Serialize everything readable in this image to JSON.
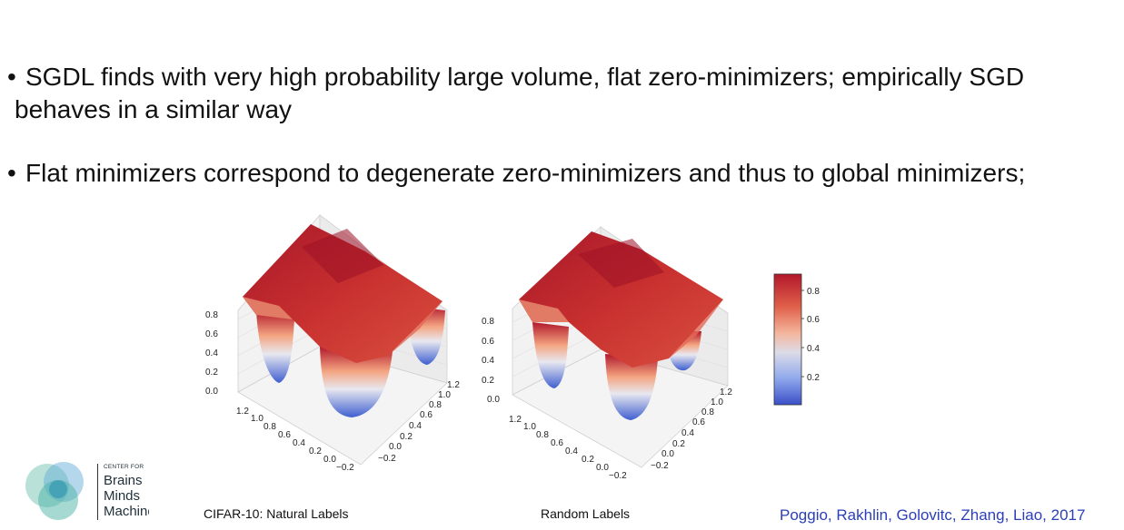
{
  "bullets": [
    {
      "mark": "•",
      "line1": "SGDL finds with very high probability  large volume, flat zero-minimizers; empirically SGD",
      "line2": "behaves in a similar way"
    },
    {
      "mark": "•",
      "line1": "Flat minimizers correspond to degenerate zero-minimizers and thus to global minimizers;"
    }
  ],
  "figures": {
    "left_caption": "CIFAR-10: Natural Labels",
    "right_caption": "Random Labels",
    "citation": "Poggio, Rakhlin, Golovitc, Zhang, Liao, 2017"
  },
  "logo": {
    "small": "CENTER FOR",
    "line1": "Brains",
    "line2": "Minds",
    "line3": "Machines"
  },
  "colors": {
    "surface_high": "#b2182b",
    "surface_mid": "#f4a582",
    "surface_low": "#5a78d8",
    "citation": "#2b3fb8"
  },
  "chart_data": [
    {
      "type": "surface",
      "title": "CIFAR-10: Natural Labels",
      "x_ticks": [
        "1.2",
        "1.0",
        "0.8",
        "0.6",
        "0.4",
        "0.2",
        "0.0",
        "−0.2"
      ],
      "y_ticks": [
        "1.2",
        "1.0",
        "0.8",
        "0.6",
        "0.4",
        "0.2",
        "0.0",
        "−0.2"
      ],
      "z_ticks": [
        "0.0",
        "0.2",
        "0.4",
        "0.6",
        "0.8"
      ]
    },
    {
      "type": "surface",
      "title": "Random Labels",
      "x_ticks": [
        "1.2",
        "1.0",
        "0.8",
        "0.6",
        "0.4",
        "0.2",
        "0.0",
        "−0.2"
      ],
      "y_ticks": [
        "1.2",
        "1.0",
        "0.8",
        "0.6",
        "0.4",
        "0.2",
        "0.0",
        "−0.2"
      ],
      "z_ticks": [
        "0.0",
        "0.2",
        "0.4",
        "0.6",
        "0.8"
      ]
    }
  ],
  "colorbar": {
    "ticks": [
      "0.8",
      "0.6",
      "0.4",
      "0.2"
    ]
  }
}
